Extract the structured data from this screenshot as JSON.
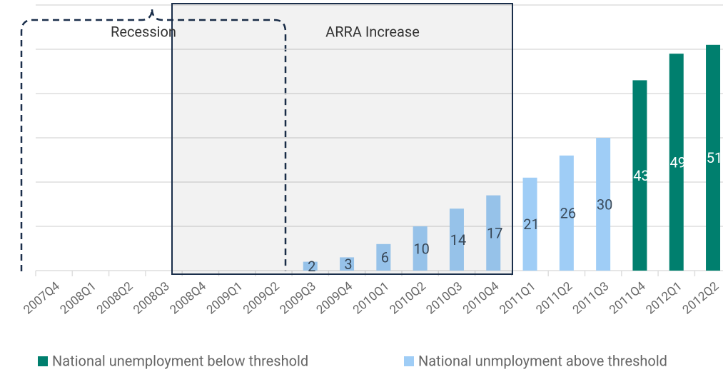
{
  "chart_data": {
    "type": "bar",
    "categories": [
      "2007Q4",
      "2008Q1",
      "2008Q2",
      "2008Q3",
      "2008Q4",
      "2009Q1",
      "2009Q2",
      "2009Q3",
      "2009Q4",
      "2010Q1",
      "2010Q2",
      "2010Q3",
      "2010Q4",
      "2011Q1",
      "2011Q2",
      "2011Q3",
      "2011Q4",
      "2012Q1",
      "2012Q2"
    ],
    "series": [
      {
        "name": "National unemployment below threshold",
        "color": "#007f6e",
        "values": [
          null,
          null,
          null,
          null,
          null,
          null,
          null,
          null,
          null,
          null,
          null,
          null,
          null,
          null,
          null,
          null,
          43,
          49,
          51
        ]
      },
      {
        "name": "National unmployment above threshold",
        "color": "#9fcdf6",
        "values": [
          null,
          null,
          null,
          null,
          null,
          null,
          null,
          2,
          3,
          6,
          10,
          14,
          17,
          21,
          26,
          30,
          null,
          null,
          null
        ]
      }
    ],
    "ylim": [
      0,
      60
    ],
    "yticks": [
      0,
      10,
      20,
      30,
      40,
      50,
      60
    ],
    "grid": true,
    "annotations": [
      "Recession",
      "ARRA Increase"
    ]
  }
}
